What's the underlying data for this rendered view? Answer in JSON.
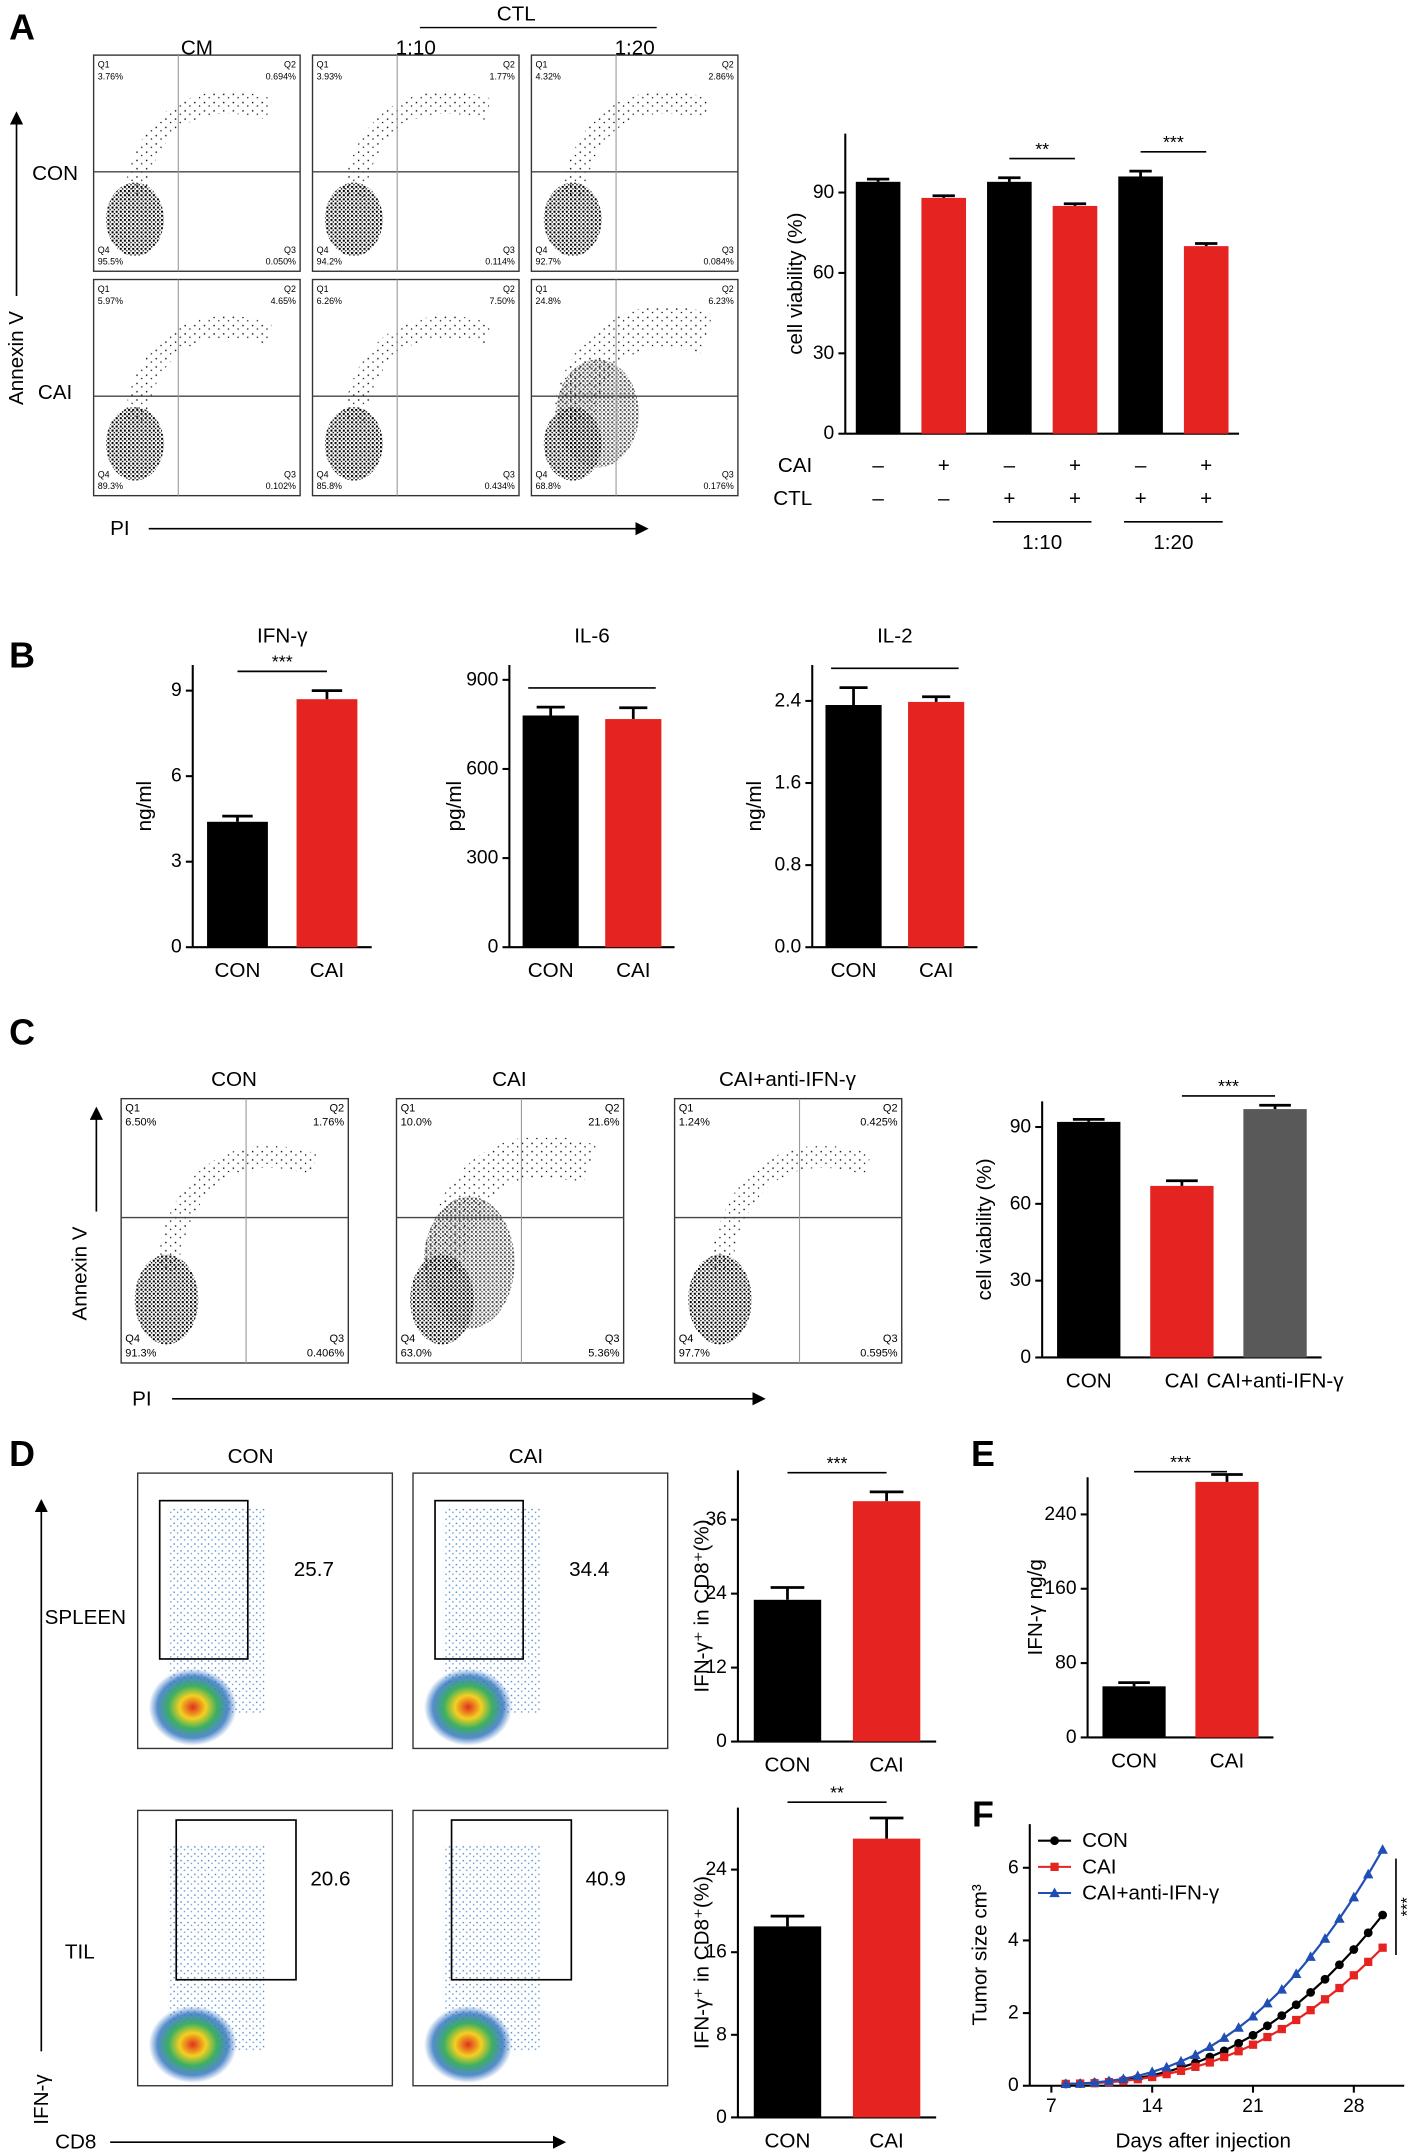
{
  "panel_labels": [
    "A",
    "B",
    "C",
    "D",
    "E",
    "F"
  ],
  "flow_plots": {
    "quadrant_names": [
      "Q1",
      "Q2",
      "Q3",
      "Q4"
    ],
    "A": {
      "group_title": "CTL",
      "column_titles": [
        "CM",
        "1:10",
        "1:20"
      ],
      "row_titles": [
        "CON",
        "CAI"
      ],
      "y_axis": "Annexin V",
      "x_axis": "PI",
      "plots": [
        [
          "3.76%",
          "0.694%",
          "0.050%",
          "95.5%"
        ],
        [
          "3.93%",
          "1.77%",
          "0.114%",
          "94.2%"
        ],
        [
          "4.32%",
          "2.86%",
          "0.084%",
          "92.7%"
        ],
        [
          "5.97%",
          "4.65%",
          "0.102%",
          "89.3%"
        ],
        [
          "6.26%",
          "7.50%",
          "0.434%",
          "85.8%"
        ],
        [
          "24.8%",
          "6.23%",
          "0.176%",
          "68.8%"
        ]
      ]
    },
    "C": {
      "column_titles": [
        "CON",
        "CAI",
        "CAI+anti-IFN-γ"
      ],
      "y_axis": "Annexin V",
      "x_axis": "PI",
      "plots": [
        [
          "6.50%",
          "1.76%",
          "0.406%",
          "91.3%"
        ],
        [
          "10.0%",
          "21.6%",
          "5.36%",
          "63.0%"
        ],
        [
          "1.24%",
          "0.425%",
          "0.595%",
          "97.7%"
        ]
      ]
    },
    "D": {
      "column_titles": [
        "CON",
        "CAI"
      ],
      "row_titles": [
        "SPLEEN",
        "TIL"
      ],
      "y_axis": "IFN-γ",
      "x_axis": "CD8",
      "gates": [
        [
          "25.7",
          "34.4"
        ],
        [
          "20.6",
          "40.9"
        ]
      ]
    }
  },
  "chart_data": [
    {
      "type": "bar",
      "ylabel": "cell viability (%)",
      "values": [
        94,
        88,
        94,
        85,
        96,
        70
      ],
      "errors": [
        1,
        0.8,
        1.5,
        0.8,
        2,
        1
      ],
      "colors": [
        "#000000",
        "#e52320",
        "#000000",
        "#e52320",
        "#000000",
        "#e52320"
      ],
      "ylim": [
        0,
        112
      ],
      "yticks": [
        0,
        30,
        60,
        90
      ],
      "significance": [
        {
          "bars": [
            2,
            3
          ],
          "label": "**"
        },
        {
          "bars": [
            4,
            5
          ],
          "label": "***"
        }
      ],
      "conditions": [
        {
          "name": "CAI",
          "signs": [
            "–",
            "+",
            "–",
            "+",
            "–",
            "+"
          ]
        },
        {
          "name": "CTL",
          "signs": [
            "–",
            "–",
            "+",
            "+",
            "+",
            "+"
          ]
        }
      ],
      "ratio_groups": [
        {
          "label": "1:10",
          "bars": [
            2,
            3
          ]
        },
        {
          "label": "1:20",
          "bars": [
            4,
            5
          ]
        }
      ]
    },
    {
      "type": "bar",
      "title": "IFN-γ",
      "ylabel": "ng/ml",
      "categories": [
        "CON",
        "CAI"
      ],
      "values": [
        4.4,
        8.7
      ],
      "errors": [
        0.2,
        0.3
      ],
      "colors": [
        "#000000",
        "#e52320"
      ],
      "ylim": [
        0,
        9.9
      ],
      "yticks": [
        0,
        3,
        6,
        9
      ],
      "significance": [
        {
          "bars": [
            0,
            1
          ],
          "label": "***"
        }
      ]
    },
    {
      "type": "bar",
      "title": "IL-6",
      "ylabel": "pg/ml",
      "categories": [
        "CON",
        "CAI"
      ],
      "values": [
        780,
        768
      ],
      "errors": [
        28,
        38
      ],
      "colors": [
        "#000000",
        "#e52320"
      ],
      "ylim": [
        0,
        950
      ],
      "yticks": [
        0,
        300,
        600,
        900
      ],
      "significance": [
        {
          "bars": [
            0,
            1
          ]
        }
      ]
    },
    {
      "type": "bar",
      "title": "IL-2",
      "ylabel": "ng/ml",
      "categories": [
        "CON",
        "CAI"
      ],
      "values": [
        2.36,
        2.39
      ],
      "errors": [
        0.17,
        0.05
      ],
      "colors": [
        "#000000",
        "#e52320"
      ],
      "ylim": [
        0,
        2.75
      ],
      "yticks": [
        {
          "value": 0,
          "label": "0.0"
        },
        {
          "value": 0.8,
          "label": "0.8"
        },
        {
          "value": 1.6,
          "label": "1.6"
        },
        {
          "value": 2.4,
          "label": "2.4"
        }
      ],
      "significance": [
        {
          "bars": [
            0,
            1
          ]
        }
      ]
    },
    {
      "type": "bar",
      "ylabel": "cell viability (%)",
      "categories": [
        "CON",
        "CAI",
        "CAI+anti-IFN-γ"
      ],
      "values": [
        92,
        67,
        97
      ],
      "errors": [
        1,
        2,
        1.5
      ],
      "colors": [
        "#000000",
        "#e52320",
        "#595959"
      ],
      "ylim": [
        0,
        100
      ],
      "yticks": [
        0,
        30,
        60,
        90
      ],
      "significance": [
        {
          "bars": [
            1,
            2
          ],
          "label": "***"
        }
      ]
    },
    {
      "type": "bar",
      "ylabel": "IFN-γ⁺ in CD8⁺(%)",
      "categories": [
        "CON",
        "CAI"
      ],
      "values": [
        23,
        39
      ],
      "errors": [
        2,
        1.5
      ],
      "colors": [
        "#000000",
        "#e52320"
      ],
      "ylim": [
        0,
        44
      ],
      "yticks": [
        0,
        12,
        24,
        36
      ],
      "significance": [
        {
          "bars": [
            0,
            1
          ],
          "label": "***"
        }
      ]
    },
    {
      "type": "bar",
      "ylabel": "IFN-γ⁺ in CD8⁺(%)",
      "categories": [
        "CON",
        "CAI"
      ],
      "values": [
        18.5,
        27
      ],
      "errors": [
        1,
        2
      ],
      "colors": [
        "#000000",
        "#e52320"
      ],
      "ylim": [
        0,
        30
      ],
      "yticks": [
        0,
        8,
        16,
        24
      ],
      "significance": [
        {
          "bars": [
            0,
            1
          ],
          "label": "**"
        }
      ]
    },
    {
      "type": "bar",
      "ylabel": "IFN-γ ng/g",
      "categories": [
        "CON",
        "CAI"
      ],
      "values": [
        55,
        275
      ],
      "errors": [
        4,
        8
      ],
      "colors": [
        "#000000",
        "#e52320"
      ],
      "ylim": [
        0,
        280
      ],
      "yticks": [
        0,
        80,
        160,
        240
      ],
      "significance": [
        {
          "bars": [
            0,
            1
          ],
          "label": "***"
        }
      ]
    },
    {
      "type": "line",
      "ylabel": "Tumor size cm³",
      "xlabel": "Days after injection",
      "x": [
        8,
        9,
        10,
        11,
        12,
        13,
        14,
        15,
        16,
        17,
        18,
        19,
        20,
        21,
        22,
        23,
        24,
        25,
        26,
        27,
        28,
        29,
        30
      ],
      "series": [
        {
          "name": "CON",
          "color": "#000000",
          "marker": "circle",
          "values": [
            0.05,
            0.06,
            0.08,
            0.11,
            0.15,
            0.21,
            0.29,
            0.38,
            0.5,
            0.63,
            0.79,
            0.96,
            1.17,
            1.39,
            1.65,
            1.93,
            2.23,
            2.57,
            2.93,
            3.33,
            3.75,
            4.21,
            4.7
          ]
        },
        {
          "name": "CAI",
          "color": "#e52320",
          "marker": "square",
          "values": [
            0.05,
            0.06,
            0.07,
            0.1,
            0.13,
            0.18,
            0.24,
            0.32,
            0.41,
            0.52,
            0.64,
            0.79,
            0.95,
            1.13,
            1.34,
            1.56,
            1.81,
            2.08,
            2.38,
            2.69,
            3.04,
            3.41,
            3.8
          ]
        },
        {
          "name": "CAI+anti-IFN-γ",
          "color": "#1f4fb4",
          "marker": "triangle",
          "values": [
            0.05,
            0.06,
            0.09,
            0.13,
            0.19,
            0.27,
            0.38,
            0.51,
            0.67,
            0.85,
            1.07,
            1.32,
            1.6,
            1.91,
            2.27,
            2.65,
            3.08,
            3.55,
            4.05,
            4.6,
            5.19,
            5.82,
            6.5
          ]
        }
      ],
      "xlim": [
        5.5,
        31.5
      ],
      "xticks": [
        7,
        14,
        21,
        28
      ],
      "ylim": [
        0,
        7.2
      ],
      "yticks": [
        0,
        2,
        4,
        6
      ],
      "significance": {
        "label": "***"
      }
    }
  ]
}
